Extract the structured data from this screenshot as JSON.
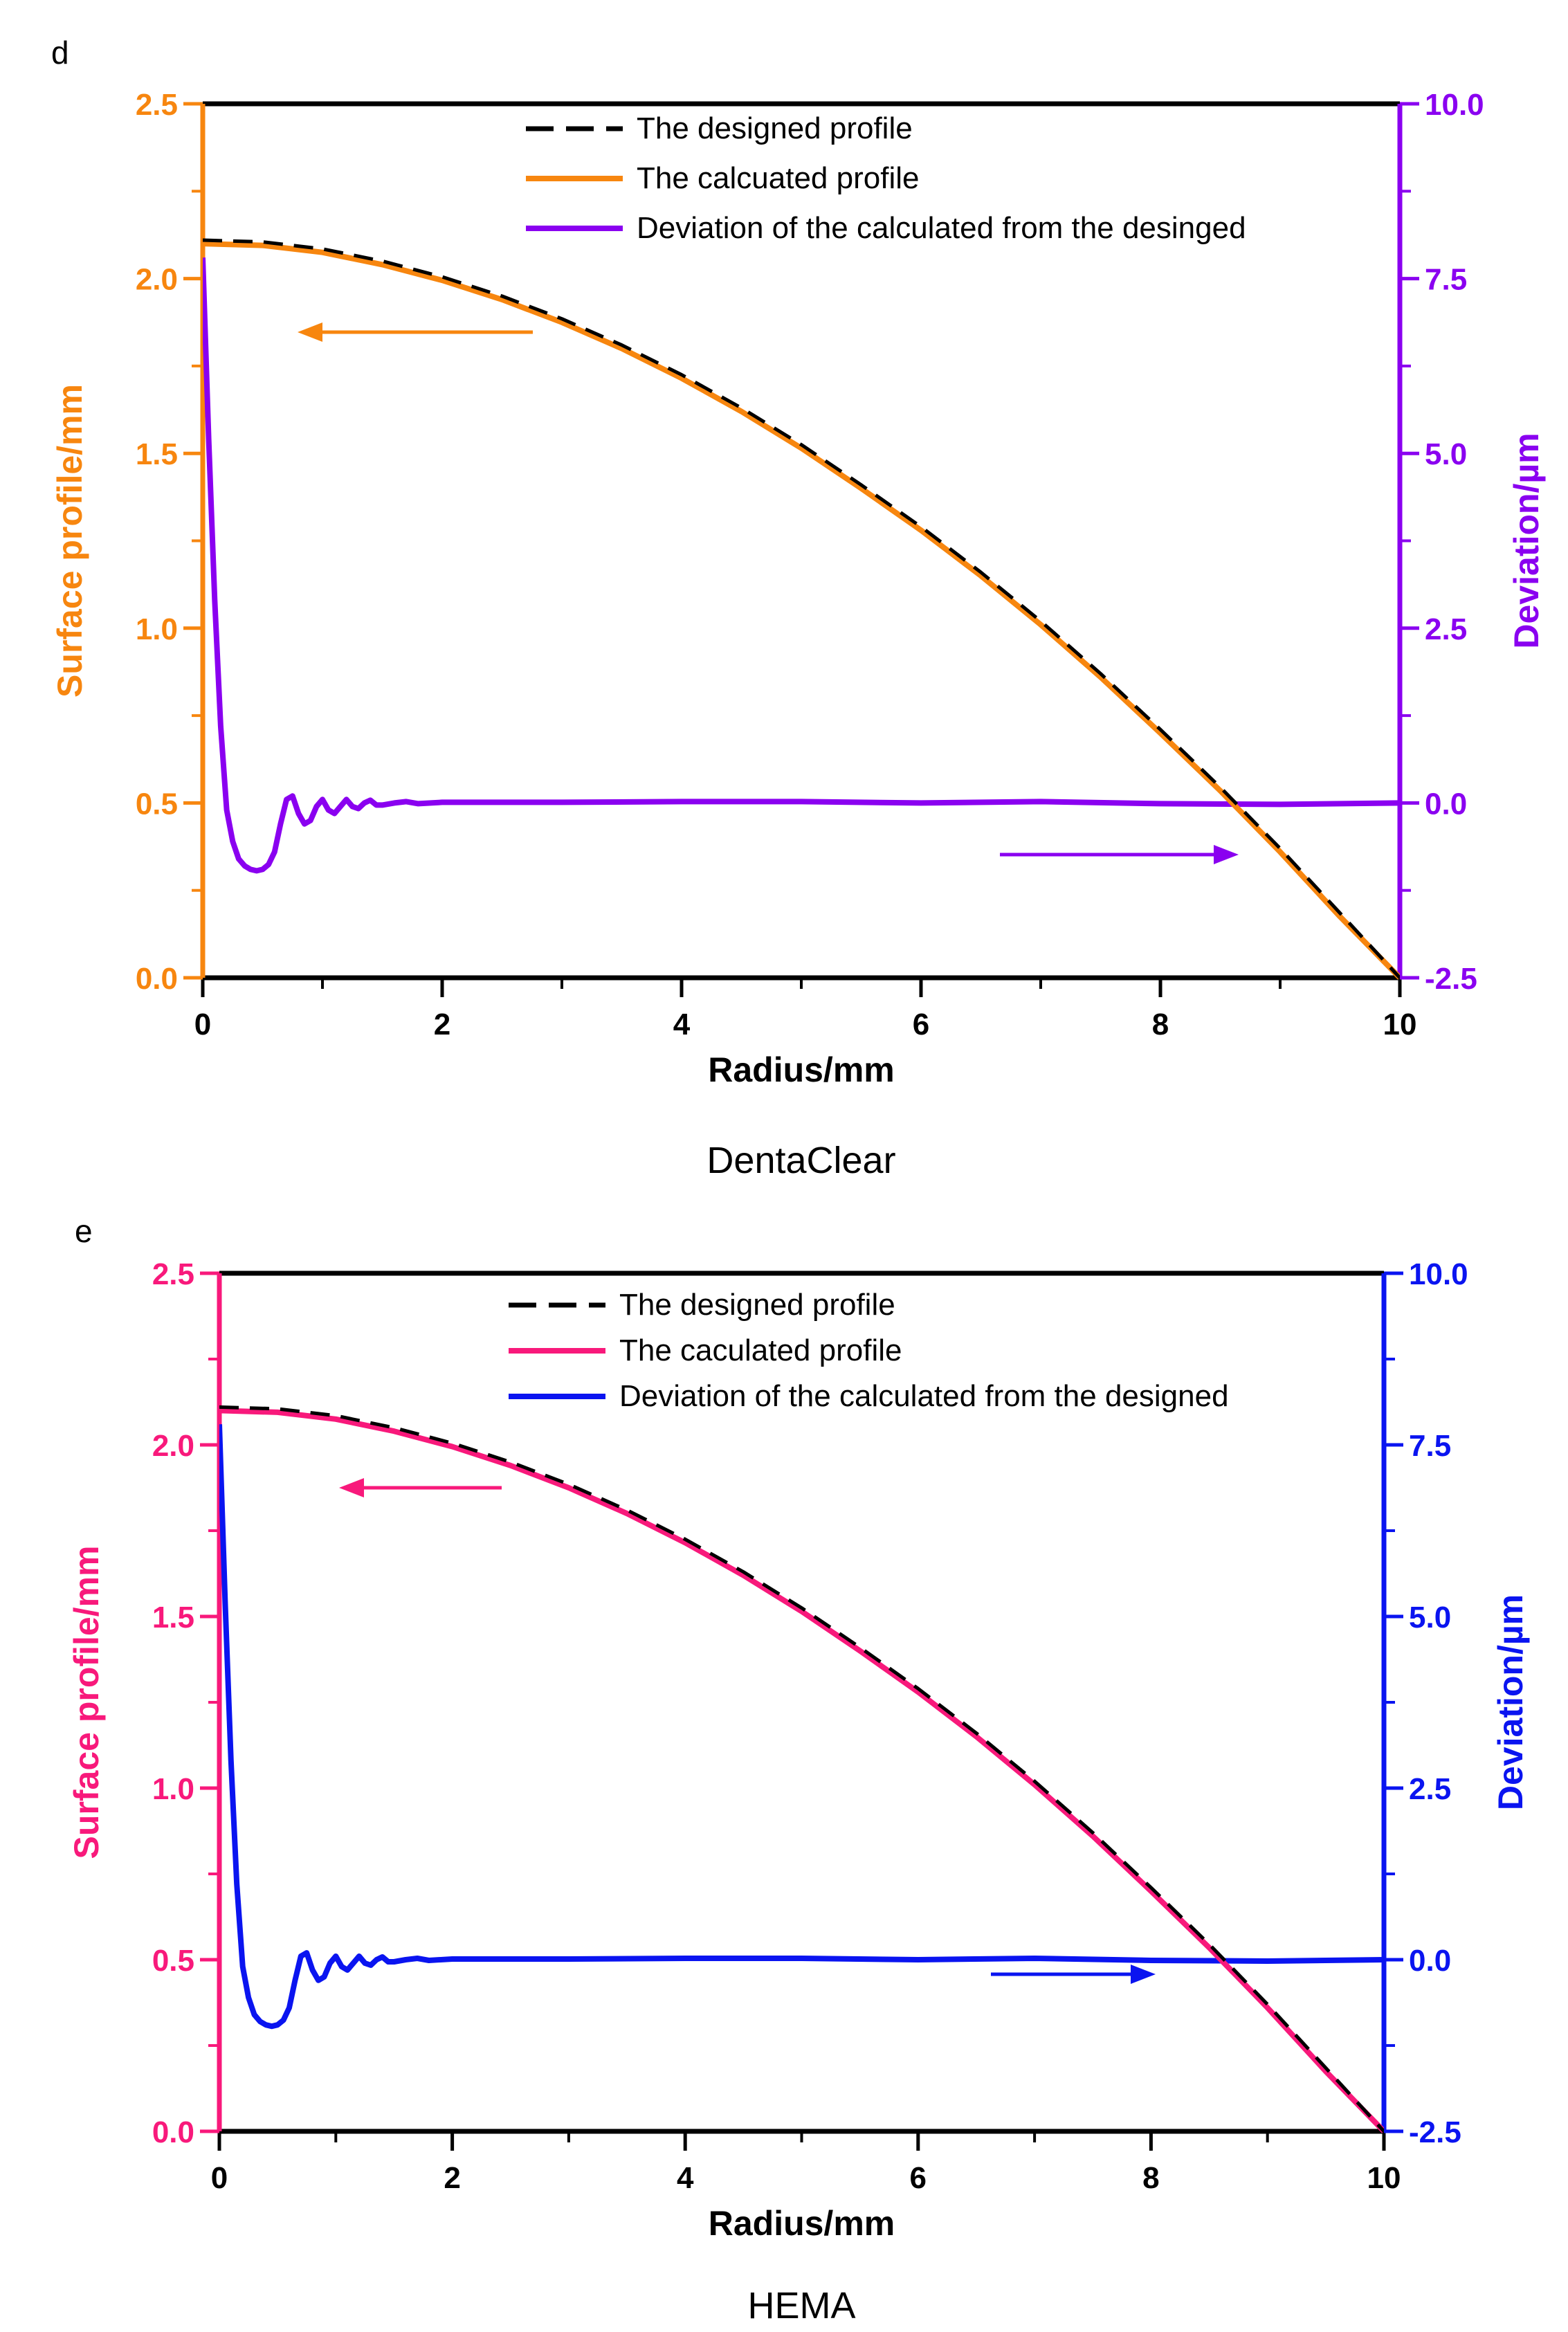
{
  "chart_data": [
    {
      "panel": "d",
      "type": "line",
      "caption": "DentaClear",
      "xlabel": "Radius/mm",
      "ylabel": "Surface profile/mm",
      "y2label": "Deviation/µm",
      "xlim": [
        0,
        10
      ],
      "ylim": [
        0,
        2.5
      ],
      "y2lim": [
        -2.5,
        10
      ],
      "xticks": [
        "0",
        "2",
        "4",
        "6",
        "8",
        "10"
      ],
      "yticks": [
        "0.0",
        "0.5",
        "1.0",
        "1.5",
        "2.0",
        "2.5"
      ],
      "y2ticks": [
        "-2.5",
        "0.0",
        "2.5",
        "5.0",
        "7.5",
        "10.0"
      ],
      "colors": {
        "left": "#F7860F",
        "right": "#8A00F0",
        "designed": "#000000"
      },
      "legend": [
        "The designed profile",
        "The calcuated profile",
        "Deviation of the calculated from the desinged"
      ],
      "series": [
        {
          "name": "The designed profile",
          "axis": "left",
          "style": "dashed",
          "x": [
            0,
            0.5,
            1,
            1.5,
            2,
            2.5,
            3,
            3.5,
            4,
            4.5,
            5,
            5.5,
            6,
            6.5,
            7,
            7.5,
            8,
            8.5,
            9,
            9.5,
            10
          ],
          "y": [
            2.11,
            2.105,
            2.085,
            2.05,
            2.005,
            1.95,
            1.885,
            1.81,
            1.725,
            1.63,
            1.525,
            1.41,
            1.29,
            1.16,
            1.02,
            0.87,
            0.71,
            0.545,
            0.37,
            0.185,
            0.0
          ]
        },
        {
          "name": "The calcuated profile",
          "axis": "left",
          "style": "solid",
          "x": [
            0,
            0.5,
            1,
            1.5,
            2,
            2.5,
            3,
            3.5,
            4,
            4.5,
            5,
            5.5,
            6,
            6.5,
            7,
            7.5,
            8,
            8.5,
            9,
            9.5,
            10
          ],
          "y": [
            2.1,
            2.095,
            2.075,
            2.04,
            1.995,
            1.94,
            1.875,
            1.8,
            1.715,
            1.62,
            1.515,
            1.4,
            1.28,
            1.15,
            1.01,
            0.86,
            0.7,
            0.535,
            0.36,
            0.175,
            0.0
          ]
        },
        {
          "name": "Deviation of the calculated from the desinged",
          "axis": "right",
          "style": "solid",
          "x": [
            0,
            0.05,
            0.1,
            0.15,
            0.2,
            0.25,
            0.3,
            0.35,
            0.4,
            0.45,
            0.5,
            0.55,
            0.6,
            0.65,
            0.7,
            0.75,
            0.8,
            0.85,
            0.9,
            0.95,
            1.0,
            1.05,
            1.1,
            1.15,
            1.2,
            1.25,
            1.3,
            1.35,
            1.4,
            1.45,
            1.5,
            1.6,
            1.7,
            1.8,
            2,
            3,
            4,
            5,
            6,
            7,
            8,
            9,
            10
          ],
          "y": [
            7.8,
            5.2,
            2.9,
            1.1,
            -0.1,
            -0.55,
            -0.8,
            -0.9,
            -0.95,
            -0.97,
            -0.95,
            -0.88,
            -0.7,
            -0.3,
            0.05,
            0.1,
            -0.15,
            -0.3,
            -0.25,
            -0.05,
            0.05,
            -0.1,
            -0.15,
            -0.05,
            0.05,
            -0.05,
            -0.08,
            0.0,
            0.04,
            -0.03,
            -0.03,
            0.0,
            0.02,
            -0.01,
            0.01,
            0.01,
            0.02,
            0.02,
            0.0,
            0.02,
            -0.01,
            -0.02,
            0.0
          ]
        }
      ]
    },
    {
      "panel": "e",
      "type": "line",
      "caption": "HEMA",
      "xlabel": "Radius/mm",
      "ylabel": "Surface profile/mm",
      "y2label": "Deviation/µm",
      "xlim": [
        0,
        10
      ],
      "ylim": [
        0,
        2.5
      ],
      "y2lim": [
        -2.5,
        10
      ],
      "xticks": [
        "0",
        "2",
        "4",
        "6",
        "8",
        "10"
      ],
      "yticks": [
        "0.0",
        "0.5",
        "1.0",
        "1.5",
        "2.0",
        "2.5"
      ],
      "y2ticks": [
        "-2.5",
        "0.0",
        "2.5",
        "5.0",
        "7.5",
        "10.0"
      ],
      "colors": {
        "left": "#F8197B",
        "right": "#0A14F0",
        "designed": "#000000"
      },
      "legend": [
        "The designed profile",
        "The caculated profile",
        "Deviation of the calculated from the designed"
      ],
      "series": [
        {
          "name": "The designed profile",
          "axis": "left",
          "style": "dashed",
          "x": [
            0,
            0.5,
            1,
            1.5,
            2,
            2.5,
            3,
            3.5,
            4,
            4.5,
            5,
            5.5,
            6,
            6.5,
            7,
            7.5,
            8,
            8.5,
            9,
            9.5,
            10
          ],
          "y": [
            2.11,
            2.105,
            2.085,
            2.05,
            2.005,
            1.95,
            1.885,
            1.81,
            1.725,
            1.63,
            1.525,
            1.41,
            1.29,
            1.16,
            1.02,
            0.87,
            0.71,
            0.545,
            0.37,
            0.185,
            0.0
          ]
        },
        {
          "name": "The caculated profile",
          "axis": "left",
          "style": "solid",
          "x": [
            0,
            0.5,
            1,
            1.5,
            2,
            2.5,
            3,
            3.5,
            4,
            4.5,
            5,
            5.5,
            6,
            6.5,
            7,
            7.5,
            8,
            8.5,
            9,
            9.5,
            10
          ],
          "y": [
            2.1,
            2.095,
            2.075,
            2.04,
            1.995,
            1.94,
            1.875,
            1.8,
            1.715,
            1.62,
            1.515,
            1.4,
            1.28,
            1.15,
            1.01,
            0.86,
            0.7,
            0.535,
            0.36,
            0.175,
            0.0
          ]
        },
        {
          "name": "Deviation of the calculated from the designed",
          "axis": "right",
          "style": "solid",
          "x": [
            0,
            0.05,
            0.1,
            0.15,
            0.2,
            0.25,
            0.3,
            0.35,
            0.4,
            0.45,
            0.5,
            0.55,
            0.6,
            0.65,
            0.7,
            0.75,
            0.8,
            0.85,
            0.9,
            0.95,
            1.0,
            1.05,
            1.1,
            1.15,
            1.2,
            1.25,
            1.3,
            1.35,
            1.4,
            1.45,
            1.5,
            1.6,
            1.7,
            1.8,
            2,
            3,
            4,
            5,
            6,
            7,
            8,
            9,
            10
          ],
          "y": [
            7.8,
            5.2,
            2.9,
            1.1,
            -0.1,
            -0.55,
            -0.8,
            -0.9,
            -0.95,
            -0.97,
            -0.95,
            -0.88,
            -0.7,
            -0.3,
            0.05,
            0.1,
            -0.15,
            -0.3,
            -0.25,
            -0.05,
            0.05,
            -0.1,
            -0.15,
            -0.05,
            0.05,
            -0.05,
            -0.08,
            0.0,
            0.04,
            -0.03,
            -0.03,
            0.0,
            0.02,
            -0.01,
            0.01,
            0.01,
            0.02,
            0.02,
            0.0,
            0.02,
            -0.01,
            -0.02,
            0.0
          ]
        }
      ]
    }
  ]
}
